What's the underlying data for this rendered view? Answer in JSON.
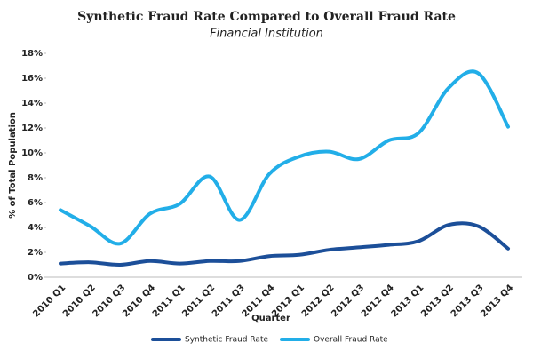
{
  "chart_data": {
    "type": "line",
    "title": "Synthetic Fraud Rate Compared to Overall Fraud Rate",
    "subtitle": "Financial Institution",
    "x_label": "Quarter",
    "y_label": "% of Total Population",
    "categories": [
      "2010 Q1",
      "2010 Q2",
      "2010 Q3",
      "2010 Q4",
      "2011 Q1",
      "2011 Q2",
      "2011 Q3",
      "2011 Q4",
      "2012 Q1",
      "2012 Q2",
      "2012 Q3",
      "2012 Q4",
      "2013 Q1",
      "2013 Q2",
      "2013 Q3",
      "2013 Q4"
    ],
    "series": [
      {
        "name": "Synthetic Fraud Rate",
        "color": "#1c4f99",
        "values": [
          1.1,
          1.2,
          1.0,
          1.3,
          1.1,
          1.3,
          1.3,
          1.7,
          1.8,
          2.2,
          2.4,
          2.6,
          2.9,
          4.2,
          4.1,
          2.3
        ]
      },
      {
        "name": "Overall Fraud Rate",
        "color": "#22aee8",
        "values": [
          5.4,
          4.1,
          2.7,
          5.1,
          5.9,
          8.1,
          4.6,
          8.3,
          9.7,
          10.1,
          9.5,
          11.0,
          11.6,
          15.2,
          16.4,
          12.1
        ]
      }
    ],
    "ylim": [
      0,
      18
    ],
    "yticks": [
      {
        "value": 0,
        "label": "0%"
      },
      {
        "value": 2,
        "label": "2%"
      },
      {
        "value": 4,
        "label": "4%"
      },
      {
        "value": 6,
        "label": "6%"
      },
      {
        "value": 8,
        "label": "8%"
      },
      {
        "value": 10,
        "label": "10%"
      },
      {
        "value": 12,
        "label": "12%"
      },
      {
        "value": 14,
        "label": "14%"
      },
      {
        "value": 16,
        "label": "16%"
      },
      {
        "value": 18,
        "label": "18%"
      }
    ],
    "grid": false,
    "legend": "bottom"
  }
}
